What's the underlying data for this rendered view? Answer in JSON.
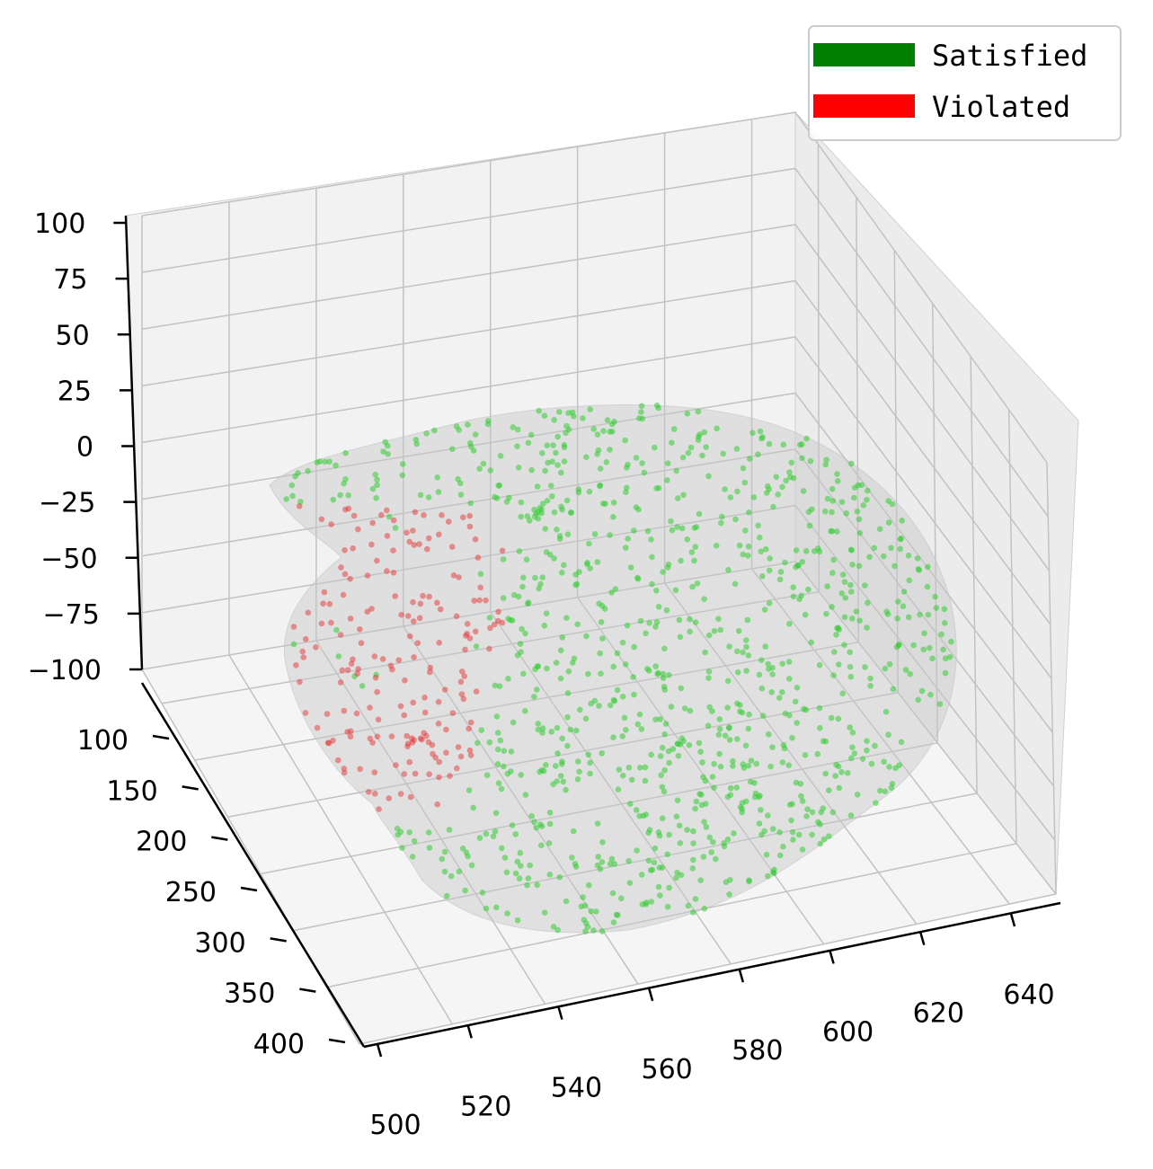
{
  "chart_data": {
    "type": "scatter",
    "projection": "3d",
    "xlim": [
      500,
      650
    ],
    "ylim": [
      100,
      430
    ],
    "zlim": [
      -100,
      100
    ],
    "x_ticks": [
      "500",
      "520",
      "540",
      "560",
      "580",
      "600",
      "620",
      "640"
    ],
    "y_ticks": [
      "100",
      "150",
      "200",
      "250",
      "300",
      "350",
      "400"
    ],
    "z_ticks": [
      "100",
      "75",
      "50",
      "25",
      "0",
      "−25",
      "−50",
      "−75",
      "−100"
    ],
    "grid": true,
    "legend_position": "top-right",
    "surface_color": "#c8c8c8",
    "series": [
      {
        "name": "Satisfied",
        "color": "#008000",
        "marker_color": "#33cc33"
      },
      {
        "name": "Violated",
        "color": "#ff0000",
        "marker_color": "#e63333"
      }
    ]
  }
}
